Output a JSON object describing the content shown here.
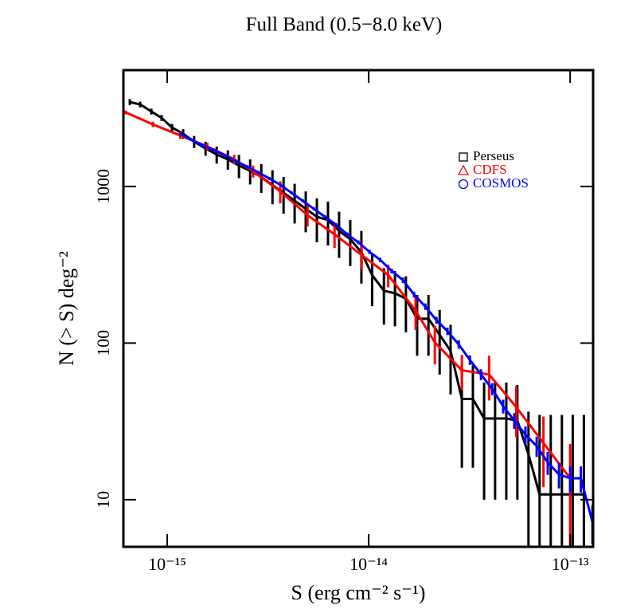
{
  "chart_data": {
    "type": "line",
    "title": "Full Band (0.5−8.0 keV)",
    "xlabel": "S (erg cm⁻² s⁻¹)",
    "ylabel": "N (> S) deg⁻²",
    "xscale": "log",
    "yscale": "log",
    "xlim": [
      6.06e-16,
      1.3e-13
    ],
    "ylim": [
      5,
      5530
    ],
    "xticks": [
      {
        "value": 1e-15,
        "label": "10⁻¹⁵"
      },
      {
        "value": 1e-14,
        "label": "10⁻¹⁴"
      },
      {
        "value": 1e-13,
        "label": "10⁻¹³"
      }
    ],
    "yticks": [
      10,
      100,
      1000
    ],
    "legend": "upper right",
    "series": [
      {
        "name": "Perseus",
        "color": "#000000",
        "marker": "square",
        "x": [
          6.52e-16,
          7.34e-16,
          8.34e-16,
          9.38e-16,
          1.056e-15,
          1.2e-15,
          1.36e-15,
          1.55e-15,
          1.76e-15,
          2e-15,
          2.27e-15,
          2.58e-15,
          2.93e-15,
          3.33e-15,
          3.78e-15,
          4.29e-15,
          4.87e-15,
          5.53e-15,
          6.28e-15,
          7.13e-15,
          8.1e-15,
          9.2e-15,
          1.04e-14,
          1.19e-14,
          1.35e-14,
          1.53e-14,
          1.74e-14,
          1.98e-14,
          2.25e-14,
          2.55e-14,
          2.9e-14,
          3.29e-14,
          3.74e-14,
          4.24e-14,
          4.82e-14,
          5.47e-14,
          6.21e-14,
          7.05e-14,
          8.01e-14,
          9.1e-14,
          1.03e-13,
          1.17e-13
        ],
        "values": [
          3460,
          3340,
          3010,
          2740,
          2380,
          2170,
          1930,
          1750,
          1600,
          1490,
          1360,
          1260,
          1150,
          1020,
          910,
          810,
          720,
          640,
          610,
          520,
          460,
          380,
          272,
          216,
          208,
          192,
          143,
          143,
          113,
          89,
          44,
          44,
          33,
          33,
          33,
          32,
          19.5,
          10.8,
          10.8,
          10.8,
          10.8,
          10.8
        ],
        "errors": [
          150,
          140,
          130,
          120,
          130,
          150,
          170,
          180,
          200,
          210,
          230,
          230,
          240,
          250,
          240,
          230,
          210,
          200,
          190,
          170,
          150,
          140,
          100,
          85,
          80,
          75,
          60,
          60,
          50,
          42,
          28,
          28,
          23,
          23,
          23,
          22,
          17,
          24,
          24,
          24,
          24,
          24
        ]
      },
      {
        "name": "CDFS",
        "color": "#ff0000",
        "marker": "triangle",
        "x": [
          6.22e-16,
          8.49e-16,
          1.16e-15,
          1.58e-15,
          2.15e-15,
          2.67e-15,
          3.64e-15,
          4.97e-15,
          6.77e-15,
          9.23e-15,
          1.25e-14,
          1.71e-14,
          2.13e-14,
          2.9e-14,
          3.96e-14,
          5.4e-14,
          7.37e-14,
          1e-13
        ],
        "values": [
          2970,
          2490,
          2120,
          1800,
          1490,
          1250,
          930,
          655,
          495,
          365,
          272,
          161,
          101,
          67,
          63,
          39,
          23,
          13.7
        ],
        "errors": [
          80,
          100,
          110,
          100,
          100,
          110,
          150,
          100,
          90,
          70,
          45,
          40,
          28,
          17,
          20,
          14,
          11,
          9
        ]
      },
      {
        "name": "COSMOS",
        "color": "#0000ff",
        "marker": "circle",
        "x": [
          1.16e-15,
          1.31e-15,
          1.49e-15,
          1.69e-15,
          1.93e-15,
          2.19e-15,
          2.49e-15,
          2.82e-15,
          3.21e-15,
          3.64e-15,
          4.14e-15,
          4.7e-15,
          5.34e-15,
          6.06e-15,
          6.88e-15,
          7.82e-15,
          8.88e-15,
          1.01e-14,
          1.14e-14,
          1.3e-14,
          1.48e-14,
          1.68e-14,
          1.91e-14,
          2.17e-14,
          2.46e-14,
          2.8e-14,
          3.18e-14,
          3.61e-14,
          4.1e-14,
          4.65e-14,
          5.28e-14,
          6e-14,
          6.82e-14,
          7.74e-14,
          8.8e-14,
          1e-13,
          1.13e-13,
          1.29e-13
        ],
        "values": [
          2170,
          1995,
          1840,
          1715,
          1580,
          1455,
          1340,
          1235,
          1125,
          1025,
          910,
          810,
          720,
          640,
          570,
          495,
          440,
          382,
          340,
          289,
          252,
          204,
          171,
          140,
          119,
          98,
          78,
          63,
          51,
          39.5,
          32,
          26,
          22,
          17.3,
          14.5,
          13.7,
          13.7,
          7.2
        ],
        "errors": [
          40,
          38,
          35,
          33,
          30,
          28,
          27,
          25,
          24,
          22,
          20,
          19,
          17,
          16,
          15,
          14,
          13,
          12,
          11,
          10,
          10,
          9,
          8,
          7,
          6.5,
          6,
          5.5,
          5,
          4.5,
          4,
          3.7,
          3.4,
          3.2,
          2.9,
          2.7,
          2.6,
          2.6,
          2
        ]
      }
    ]
  }
}
